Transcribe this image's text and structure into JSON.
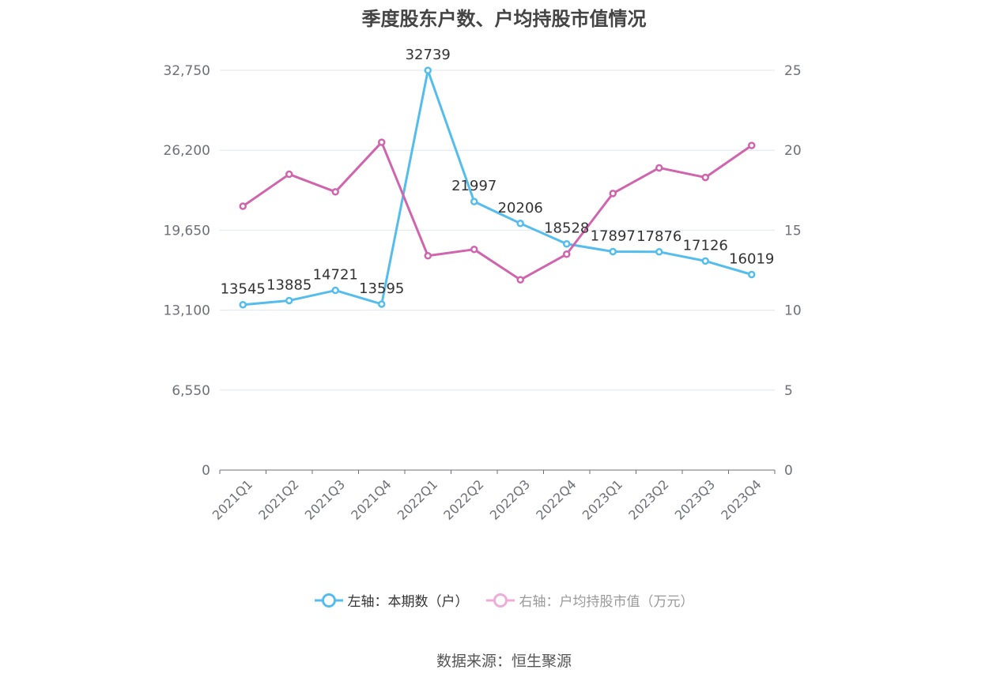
{
  "chart_data": {
    "type": "line",
    "title": "季度股东户数、户均持股市值情况",
    "categories": [
      "2021Q1",
      "2021Q2",
      "2021Q3",
      "2021Q4",
      "2022Q1",
      "2022Q2",
      "2022Q3",
      "2022Q4",
      "2023Q1",
      "2023Q2",
      "2023Q3",
      "2023Q4"
    ],
    "left_axis": {
      "min": 0,
      "max": 32750,
      "ticks": [
        0,
        6550,
        13100,
        19650,
        26200,
        32750
      ],
      "tick_labels": [
        "0",
        "6,550",
        "13,100",
        "19,650",
        "26,200",
        "32,750"
      ]
    },
    "right_axis": {
      "min": 0,
      "max": 25,
      "ticks": [
        0,
        5,
        10,
        15,
        20,
        25
      ],
      "tick_labels": [
        "0",
        "5",
        "10",
        "15",
        "20",
        "25"
      ]
    },
    "series": [
      {
        "name": "左轴：本期数（户）",
        "axis": "left",
        "color": "#55bdee",
        "values": [
          13545,
          13885,
          14721,
          13595,
          32739,
          21997,
          20206,
          18528,
          17897,
          17876,
          17126,
          16019
        ],
        "labels": [
          "13545",
          "13885",
          "14721",
          "13595",
          "32739",
          "21997",
          "20206",
          "18528",
          "17897",
          "17876",
          "17126",
          "16019"
        ]
      },
      {
        "name": "右轴：户均持股市值（万元）",
        "axis": "right",
        "color": "#d065ad",
        "values": [
          16.5,
          18.5,
          17.4,
          20.5,
          13.4,
          13.8,
          11.9,
          13.5,
          17.3,
          18.9,
          18.3,
          20.3
        ]
      }
    ],
    "grid": true,
    "legend_position": "bottom"
  },
  "legend": {
    "left_series_label": "左轴：本期数（户）",
    "right_series_label": "右轴：户均持股市值（万元）",
    "left_color": "#55bdee",
    "right_color": "#eeadd6"
  },
  "footer": {
    "source": "数据来源：恒生聚源"
  }
}
